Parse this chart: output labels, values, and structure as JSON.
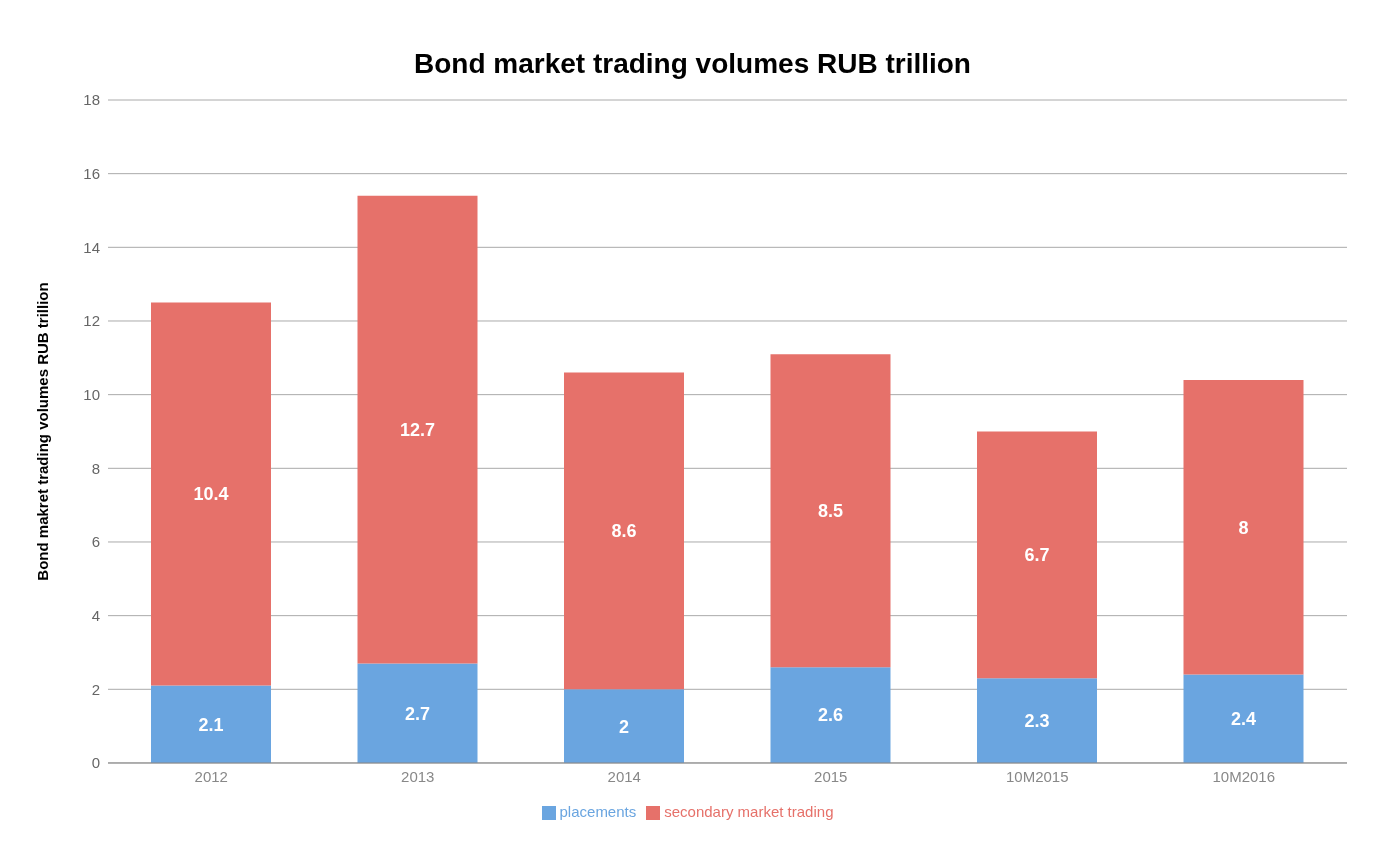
{
  "chart_data": {
    "type": "bar",
    "title": "Bond market trading volumes RUB trillion",
    "ylabel": "Bond makret trading volumes RUB trillion",
    "categories": [
      "2012",
      "2013",
      "2014",
      "2015",
      "10M2015",
      "10M2016"
    ],
    "series": [
      {
        "name": "placements",
        "color": "#6aa5e0",
        "values": [
          2.1,
          2.7,
          2,
          2.6,
          2.3,
          2.4
        ]
      },
      {
        "name": "secondary market trading",
        "color": "#e6716a",
        "values": [
          10.4,
          12.7,
          8.6,
          8.5,
          6.7,
          8
        ]
      }
    ],
    "stacked": true,
    "data_labels": true,
    "ylim": [
      0,
      18
    ],
    "yticks": [
      0,
      2,
      4,
      6,
      8,
      10,
      12,
      14,
      16,
      18
    ],
    "grid": "y",
    "legend": "bottom"
  }
}
